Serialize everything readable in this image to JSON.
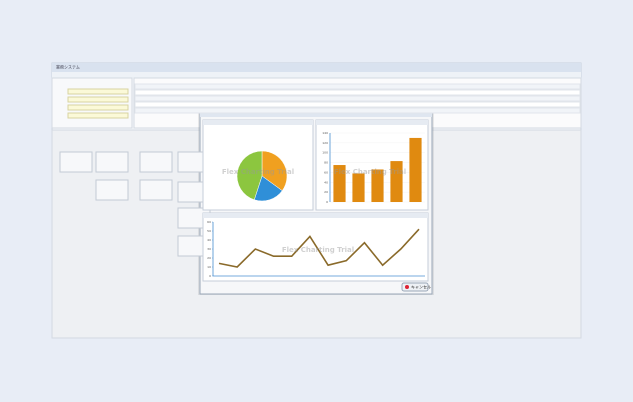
{
  "app": {
    "title": "業務システム",
    "cancel": "キャンセル"
  },
  "chart_data": [
    {
      "type": "pie",
      "values": [
        35,
        20,
        45
      ],
      "colors": [
        "#f0a020",
        "#2f8fd8",
        "#8cc63f"
      ],
      "watermark": "Flex Charting Trial"
    },
    {
      "type": "bar",
      "values": [
        75,
        58,
        66,
        83,
        130
      ],
      "color": "#e08a10",
      "ylim": [
        0,
        140
      ],
      "yticks": [
        0,
        20,
        40,
        60,
        80,
        100,
        120,
        140
      ],
      "grid": true,
      "watermark": "Flex Charting Trial"
    },
    {
      "type": "line",
      "values": [
        14,
        10,
        30,
        22,
        22,
        44,
        12,
        17,
        37,
        12,
        30,
        52
      ],
      "color": "#8a6a2a",
      "ylim": [
        0,
        60
      ],
      "yticks": [
        0,
        10,
        20,
        30,
        40,
        50,
        60
      ],
      "grid": false,
      "watermark": "Flex Charting Trial"
    }
  ]
}
